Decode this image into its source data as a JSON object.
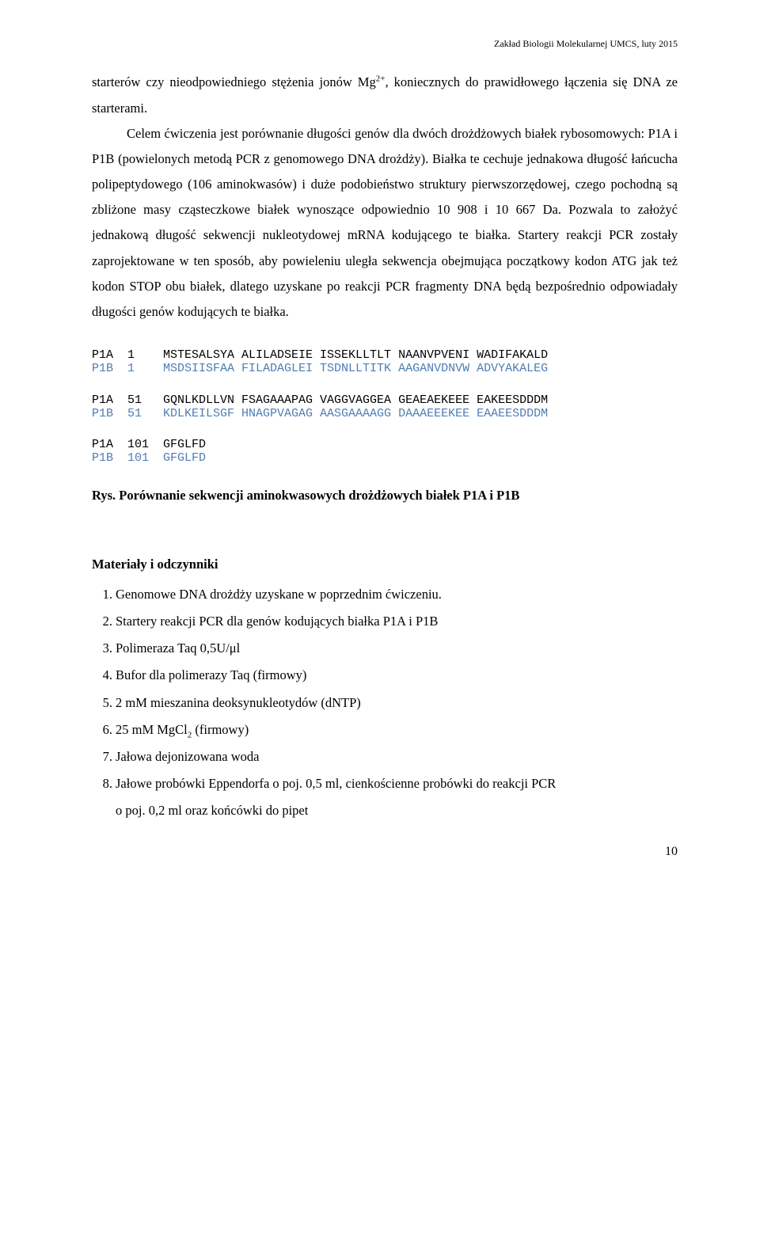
{
  "header": "Zakład Biologii Molekularnej UMCS, luty 2015",
  "para_a": "starterów czy nieodpowiedniego stężenia jonów Mg",
  "para_b": ", koniecznych do prawidłowego łączenia się DNA ze starterami.",
  "para_c": "Celem ćwiczenia jest porównanie długości genów dla dwóch drożdżowych białek rybosomowych: P1A i P1B (powielonych metodą PCR z genomowego DNA drożdży). Białka te cechuje jednakowa długość łańcucha polipeptydowego (106 aminokwasów) i duże podobieństwo struktury pierwszorzędowej, czego pochodną są zbliżone masy cząsteczkowe białek wynoszące odpowiednio 10 908 i 10 667 Da. Pozwala to założyć jednakową długość sekwencji nukleotydowej mRNA kodującego te białka. Startery reakcji PCR zostały zaprojektowane w ten sposób, aby powieleniu uległa sekwencja obejmująca początkowy kodon ATG jak też kodon STOP obu białek, dlatego uzyskane po reakcji PCR fragmenty DNA będą bezpośrednio odpowiadały długości genów kodujących te białka.",
  "sup2plus": "2+",
  "seq1_p1a": "P1A  1    MSTESALSYA ALILADSEIE ISSEKLLTLT NAANVPVENI WADIFAKALD",
  "seq1_p1b": "P1B  1    MSDSIISFAA FILADAGLEI TSDNLLTITK AAGANVDNVW ADVYAKALEG",
  "seq2_p1a": "P1A  51   GQNLKDLLVN FSAGAAAPAG VAGGVAGGEA GEAEAEKEEE EAKEESDDDM",
  "seq2_p1b": "P1B  51   KDLKEILSGF HNAGPVAGAG AASGAAAAGG DAAAEEEKEE EAAEESDDDM",
  "seq3_p1a": "P1A  101  GFGLFD",
  "seq3_p1b": "P1B  101  GFGLFD",
  "fig_caption": "Rys. Porównanie sekwencji aminokwasowych drożdżowych białek P1A i P1B",
  "materials_heading": "Materiały i odczynniki",
  "li1": "Genomowe DNA drożdży uzyskane w poprzednim ćwiczeniu.",
  "li2": "Startery reakcji PCR dla genów kodujących białka P1A i P1B",
  "li3": "Polimeraza Taq 0,5U/μl",
  "li4": "Bufor dla polimerazy Taq (firmowy)",
  "li5": "2 mM mieszanina deoksynukleotydów (dNTP)",
  "li6a": "25 mM MgCl",
  "li6b": " (firmowy)",
  "sub2": "2",
  "li7": "Jałowa dejonizowana woda",
  "li8a": "Jałowe probówki Eppendorfa o poj. 0,5 ml, cienkościenne probówki do reakcji PCR",
  "li8b": "o poj. 0,2 ml oraz końcówki do pipet",
  "n1": "1.",
  "n2": "2.",
  "n3": "3.",
  "n4": "4.",
  "n5": "5.",
  "n6": "6.",
  "n7": "7.",
  "n8": "8.",
  "page_number": "10",
  "colors": {
    "p1b_blue": "#4e7db3",
    "text_black": "#000000",
    "background": "#ffffff"
  }
}
